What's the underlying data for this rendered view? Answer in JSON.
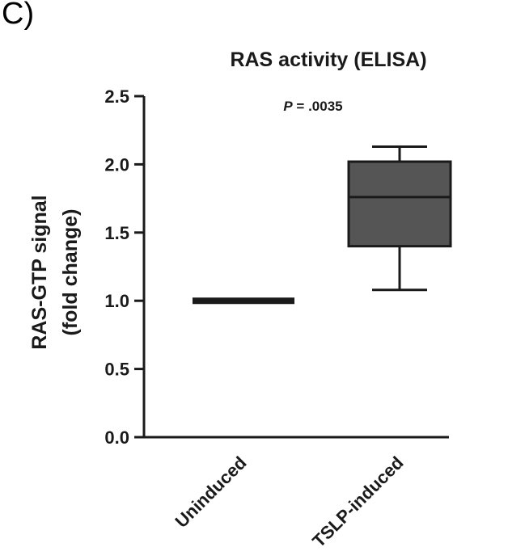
{
  "panel_label": "C)",
  "chart_data": {
    "type": "box",
    "title": "RAS activity (ELISA)",
    "ylabel_line1": "RAS-GTP signal",
    "ylabel_line2": "(fold change)",
    "xlabel": "",
    "ylim": [
      0,
      2.5
    ],
    "yticks": [
      "0.0",
      "0.5",
      "1.0",
      "1.5",
      "2.0",
      "2.5"
    ],
    "ytick_values": [
      0,
      0.5,
      1.0,
      1.5,
      2.0,
      2.5
    ],
    "annotation": {
      "p_label": "P",
      "p_value": " = .0035"
    },
    "categories": [
      "Uninduced",
      "TSLP-induced"
    ],
    "boxes": [
      {
        "name": "Uninduced",
        "min": 1.0,
        "q1": 1.0,
        "median": 1.0,
        "q3": 1.0,
        "max": 1.0,
        "color": "#2a2a2a"
      },
      {
        "name": "TSLP-induced",
        "min": 1.08,
        "q1": 1.4,
        "median": 1.76,
        "q3": 2.02,
        "max": 2.13,
        "color": "#555555"
      }
    ],
    "grid": false,
    "legend": "none"
  }
}
